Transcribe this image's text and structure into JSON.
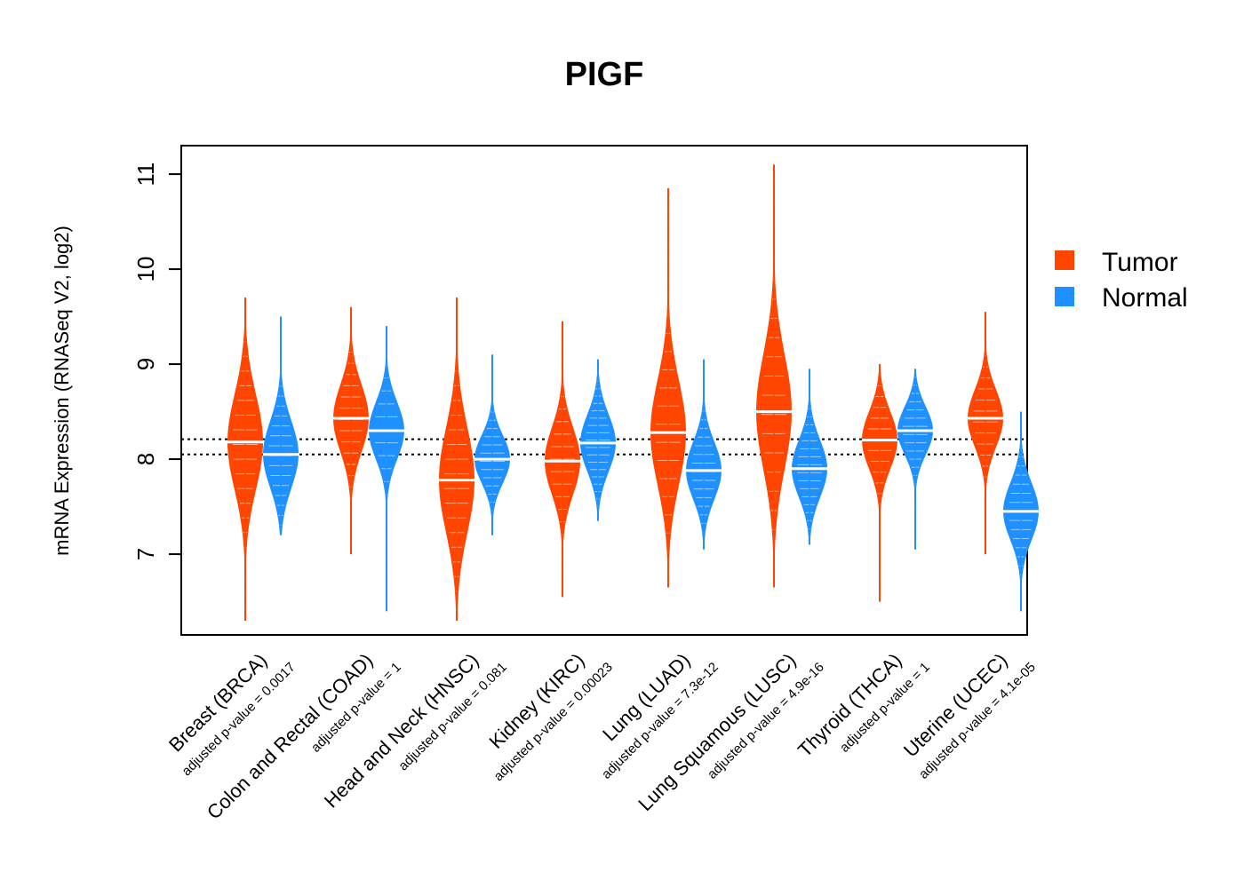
{
  "colors": {
    "tumor": "#FF4500",
    "normal": "#1E90FF",
    "frame": "#000000",
    "median": "#ffffff"
  },
  "chart_data": {
    "type": "violin",
    "title": "PIGF",
    "xlabel": "",
    "ylabel": "mRNA Expression (RNASeq V2, log2)",
    "ylim": [
      6.15,
      11.3
    ],
    "yticks": [
      7,
      8,
      9,
      10,
      11
    ],
    "reference_lines": [
      8.05,
      8.21
    ],
    "legend": {
      "position": "right",
      "entries": [
        "Tumor",
        "Normal"
      ]
    },
    "categories": [
      {
        "label": "Breast (BRCA)",
        "pvalue": "adjusted p-value = 0.0017",
        "tumor": {
          "min": 6.3,
          "max": 9.7,
          "median": 8.18,
          "spread": 0.5
        },
        "normal": {
          "min": 7.2,
          "max": 9.5,
          "median": 8.05,
          "spread": 0.35
        }
      },
      {
        "label": "Colon and Rectal (COAD)",
        "pvalue": "adjusted p-value = 1",
        "tumor": {
          "min": 7.0,
          "max": 9.6,
          "median": 8.43,
          "spread": 0.35
        },
        "normal": {
          "min": 6.4,
          "max": 9.4,
          "median": 8.3,
          "spread": 0.3
        }
      },
      {
        "label": "Head and Neck (HNSC)",
        "pvalue": "adjusted p-value = 0.081",
        "tumor": {
          "min": 6.3,
          "max": 9.7,
          "median": 7.78,
          "spread": 0.55
        },
        "normal": {
          "min": 7.2,
          "max": 9.1,
          "median": 8.0,
          "spread": 0.25
        }
      },
      {
        "label": "Kidney (KIRC)",
        "pvalue": "adjusted p-value = 0.00023",
        "tumor": {
          "min": 6.55,
          "max": 9.45,
          "median": 7.98,
          "spread": 0.35
        },
        "normal": {
          "min": 7.35,
          "max": 9.05,
          "median": 8.17,
          "spread": 0.3
        }
      },
      {
        "label": "Lung (LUAD)",
        "pvalue": "adjusted p-value = 7.3e-12",
        "tumor": {
          "min": 6.65,
          "max": 10.85,
          "median": 8.28,
          "spread": 0.55
        },
        "normal": {
          "min": 7.05,
          "max": 9.05,
          "median": 7.88,
          "spread": 0.3
        }
      },
      {
        "label": "Lung Squamous (LUSC)",
        "pvalue": "adjusted p-value = 4.9e-16",
        "tumor": {
          "min": 6.65,
          "max": 11.1,
          "median": 8.5,
          "spread": 0.6
        },
        "normal": {
          "min": 7.1,
          "max": 8.95,
          "median": 7.9,
          "spread": 0.3
        }
      },
      {
        "label": "Thyroid (THCA)",
        "pvalue": "adjusted p-value = 1",
        "tumor": {
          "min": 6.5,
          "max": 9.0,
          "median": 8.2,
          "spread": 0.3
        },
        "normal": {
          "min": 7.05,
          "max": 8.95,
          "median": 8.3,
          "spread": 0.25
        }
      },
      {
        "label": "Uterine (UCEC)",
        "pvalue": "adjusted p-value = 4.1e-05",
        "tumor": {
          "min": 7.0,
          "max": 9.55,
          "median": 8.43,
          "spread": 0.3
        },
        "normal": {
          "min": 6.4,
          "max": 8.5,
          "median": 7.45,
          "spread": 0.3
        }
      }
    ]
  }
}
